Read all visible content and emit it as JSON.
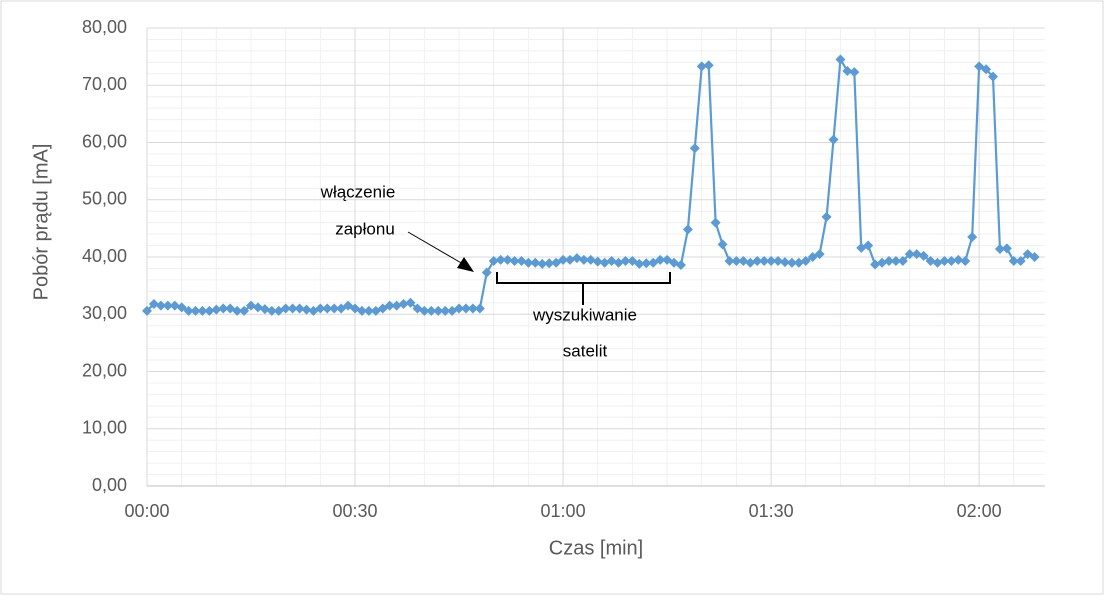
{
  "chart_data": {
    "type": "line",
    "y_label": "Pobór prądu [mA]",
    "x_label": "Czas [min]",
    "x": [
      0,
      1,
      2,
      3,
      4,
      5,
      6,
      7,
      8,
      9,
      10,
      11,
      12,
      13,
      14,
      15,
      16,
      17,
      18,
      19,
      20,
      21,
      22,
      23,
      24,
      25,
      26,
      27,
      28,
      29,
      30,
      31,
      32,
      33,
      34,
      35,
      36,
      37,
      38,
      39,
      40,
      41,
      42,
      43,
      44,
      45,
      46,
      47,
      48,
      49,
      50,
      51,
      52,
      53,
      54,
      55,
      56,
      57,
      58,
      59,
      60,
      61,
      62,
      63,
      64,
      65,
      66,
      67,
      68,
      69,
      70,
      71,
      72,
      73,
      74,
      75,
      76,
      77,
      78,
      79,
      80,
      81,
      82,
      83,
      84,
      85,
      86,
      87,
      88,
      89,
      90,
      91,
      92,
      93,
      94,
      95,
      96,
      97,
      98,
      99,
      100,
      101,
      102,
      103,
      104,
      105,
      106,
      107,
      108,
      109,
      110,
      111,
      112,
      113,
      114,
      115,
      116,
      117,
      118,
      119,
      120,
      121,
      122,
      123,
      124,
      125,
      126,
      127,
      128
    ],
    "series": [
      {
        "color": "#5b9bd5",
        "values": [
          30.6,
          31.8,
          31.5,
          31.5,
          31.5,
          31.2,
          30.6,
          30.6,
          30.6,
          30.6,
          30.8,
          31.0,
          31.0,
          30.6,
          30.6,
          31.5,
          31.2,
          30.9,
          30.6,
          30.6,
          31.0,
          31.0,
          31.0,
          30.8,
          30.6,
          31.0,
          31.0,
          31.0,
          31.0,
          31.5,
          31.0,
          30.6,
          30.6,
          30.6,
          31.0,
          31.5,
          31.5,
          31.8,
          32.0,
          31.0,
          30.6,
          30.6,
          30.6,
          30.6,
          30.6,
          31.0,
          31.0,
          31.0,
          31.0,
          37.3,
          39.3,
          39.5,
          39.5,
          39.3,
          39.3,
          39.0,
          39.0,
          38.8,
          38.9,
          39.0,
          39.5,
          39.5,
          39.8,
          39.5,
          39.5,
          39.2,
          39.0,
          39.3,
          39.0,
          39.3,
          39.3,
          38.8,
          38.9,
          39.0,
          39.5,
          39.5,
          39.0,
          38.6,
          44.8,
          59.0,
          73.3,
          73.5,
          46.0,
          42.2,
          39.3,
          39.3,
          39.3,
          39.0,
          39.3,
          39.3,
          39.3,
          39.3,
          39.1,
          39.0,
          39.0,
          39.3,
          40.0,
          40.5,
          47.0,
          60.5,
          74.5,
          72.5,
          72.3,
          41.6,
          42.0,
          38.7,
          39.0,
          39.3,
          39.3,
          39.3,
          40.5,
          40.5,
          40.2,
          39.3,
          39.0,
          39.3,
          39.3,
          39.5,
          39.3,
          43.5,
          73.3,
          72.8,
          71.5,
          41.4,
          41.5,
          39.3,
          39.3,
          40.5,
          40.0
        ]
      }
    ],
    "xlim": [
      0,
      129.5
    ],
    "ylim": [
      0,
      80
    ],
    "xticks": [
      {
        "value": 0,
        "label": "00:00"
      },
      {
        "value": 30,
        "label": "00:30"
      },
      {
        "value": 60,
        "label": "01:00"
      },
      {
        "value": 90,
        "label": "01:30"
      },
      {
        "value": 120,
        "label": "02:00"
      }
    ],
    "yticks": [
      {
        "value": 0,
        "label": "0,00"
      },
      {
        "value": 10,
        "label": "10,00"
      },
      {
        "value": 20,
        "label": "20,00"
      },
      {
        "value": 30,
        "label": "30,00"
      },
      {
        "value": 40,
        "label": "40,00"
      },
      {
        "value": 50,
        "label": "50,00"
      },
      {
        "value": 60,
        "label": "60,00"
      },
      {
        "value": 70,
        "label": "70,00"
      },
      {
        "value": 80,
        "label": "80,00"
      }
    ],
    "grid": true,
    "annotations": [
      "włączenie",
      "zapłonu",
      "wyszukiwanie",
      "satelit"
    ]
  }
}
